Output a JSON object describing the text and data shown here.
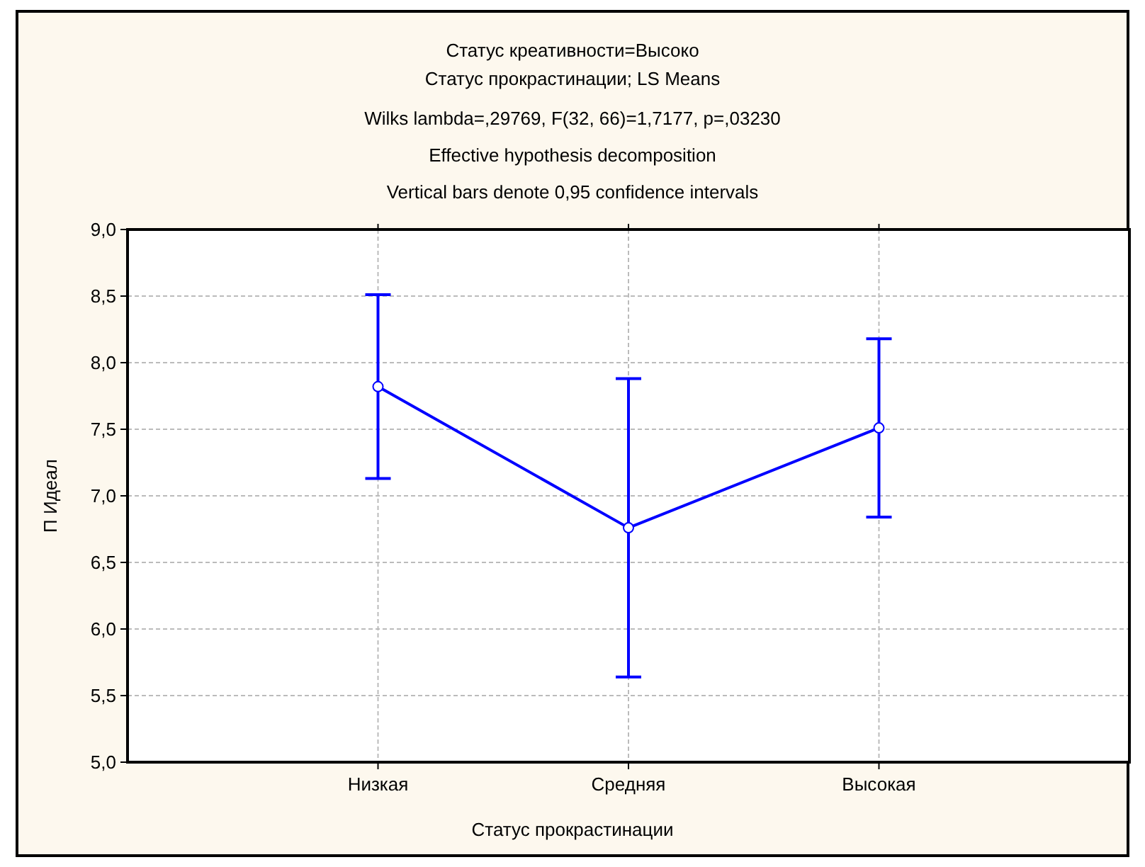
{
  "chart_data": {
    "type": "line",
    "title": "Статус креативности=Высоко",
    "subtitle": "Статус прокрастинации; LS Means",
    "annotations": [
      "Wilks lambda=,29769, F(32, 66)=1,7177, p=,03230",
      "Effective hypothesis decomposition",
      "Vertical bars denote 0,95 confidence intervals"
    ],
    "xlabel": "Статус прокрастинации",
    "ylabel": "П Идеал",
    "categories": [
      "Низкая",
      "Средняя",
      "Высокая"
    ],
    "series": [
      {
        "color": "#0000ff",
        "values": [
          7.82,
          6.76,
          7.51
        ],
        "errors": [
          0.69,
          1.12,
          0.67
        ]
      }
    ],
    "ylim": [
      5,
      9
    ],
    "yticks": [
      {
        "value": 5,
        "label": "5,0"
      },
      {
        "value": 5.5,
        "label": "5,5"
      },
      {
        "value": 6,
        "label": "6,0"
      },
      {
        "value": 6.5,
        "label": "6,5"
      },
      {
        "value": 7,
        "label": "7,0"
      },
      {
        "value": 7.5,
        "label": "7,5"
      },
      {
        "value": 8,
        "label": "8,0"
      },
      {
        "value": 8.5,
        "label": "8,5"
      },
      {
        "value": 9,
        "label": "9,0"
      }
    ],
    "grid": true,
    "marker": "circle",
    "line_style": "solid"
  }
}
